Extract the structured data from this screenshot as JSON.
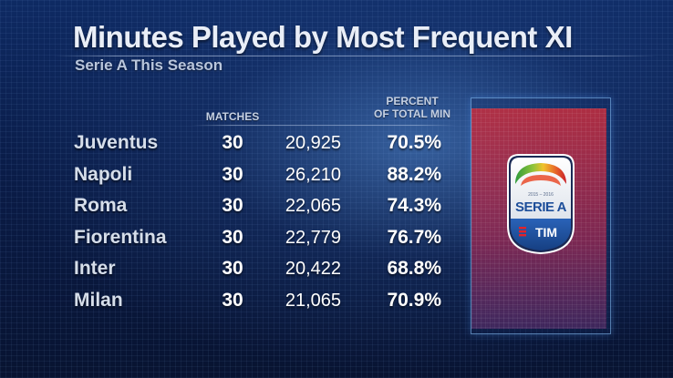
{
  "title": "Minutes Played by Most Frequent XI",
  "subtitle": "Serie A This Season",
  "columns": {
    "matches": "MATCHES",
    "percent_line1": "PERCENT",
    "percent_line2": "OF TOTAL MIN"
  },
  "rows": [
    {
      "team": "Juventus",
      "matches": "30",
      "minutes": "20,925",
      "percent": "70.5%"
    },
    {
      "team": "Napoli",
      "matches": "30",
      "minutes": "26,210",
      "percent": "88.2%"
    },
    {
      "team": "Roma",
      "matches": "30",
      "minutes": "22,065",
      "percent": "74.3%"
    },
    {
      "team": "Fiorentina",
      "matches": "30",
      "minutes": "22,779",
      "percent": "76.7%"
    },
    {
      "team": "Inter",
      "matches": "30",
      "minutes": "20,422",
      "percent": "68.8%"
    },
    {
      "team": "Milan",
      "matches": "30",
      "minutes": "21,065",
      "percent": "70.9%"
    }
  ],
  "logo": {
    "season": "2015 – 2016",
    "name": "SERIE A",
    "sponsor": "TIM"
  },
  "colors": {
    "panel_red": "#c82d3c",
    "logo_blue": "#1d4e9a"
  }
}
